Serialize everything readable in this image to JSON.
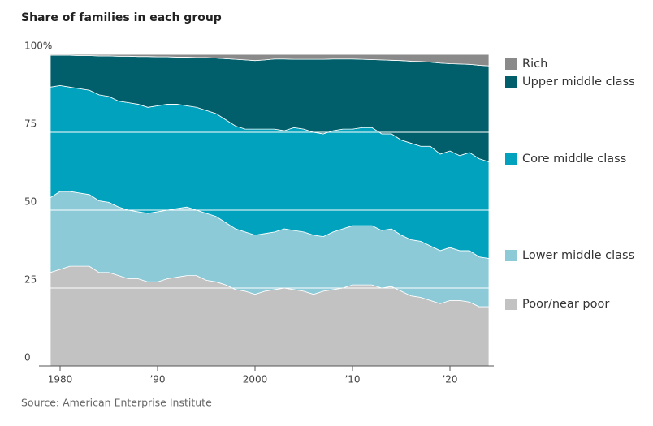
{
  "chart_data": {
    "type": "stacked-area",
    "subtitle": "Share of families in each group",
    "source": "Source: American Enterprise Institute",
    "x": [
      1979,
      1980,
      1981,
      1982,
      1983,
      1984,
      1985,
      1986,
      1987,
      1988,
      1989,
      1990,
      1991,
      1992,
      1993,
      1994,
      1995,
      1996,
      1997,
      1998,
      1999,
      2000,
      2001,
      2002,
      2003,
      2004,
      2005,
      2006,
      2007,
      2008,
      2009,
      2010,
      2011,
      2012,
      2013,
      2014,
      2015,
      2016,
      2017,
      2018,
      2019,
      2020,
      2021,
      2022,
      2023,
      2024
    ],
    "series": [
      {
        "name": "Poor/near poor",
        "color": "#c2c2c2",
        "values": [
          30,
          31,
          32,
          32,
          32,
          30,
          30,
          29,
          28,
          28,
          27,
          27,
          28,
          28.5,
          29,
          29,
          27.5,
          27,
          26,
          24.5,
          24,
          23,
          24,
          24.5,
          25,
          24.5,
          24,
          23,
          24,
          24.5,
          25,
          26,
          26,
          26,
          25,
          25.5,
          24,
          22.5,
          22,
          21,
          20,
          21,
          21,
          20.5,
          19,
          19
        ]
      },
      {
        "name": "Lower middle class",
        "color": "#8ccad8",
        "values": [
          24,
          25,
          24,
          23.5,
          23,
          23,
          22.5,
          22,
          22,
          21.5,
          22,
          22.5,
          22,
          22,
          22,
          21,
          21.5,
          21,
          20,
          19.5,
          19,
          19,
          18.5,
          18.5,
          19,
          19,
          19,
          19,
          17.5,
          18.5,
          19,
          19,
          19,
          19,
          18.5,
          18.5,
          18,
          18,
          18,
          17.5,
          17,
          17,
          16,
          16.5,
          16,
          15.5
        ]
      },
      {
        "name": "Core middle class",
        "color": "#00a2bd",
        "values": [
          35.5,
          34,
          33.5,
          33.5,
          33.5,
          34,
          34,
          34,
          34.5,
          34.5,
          34,
          34,
          34,
          33.5,
          32.5,
          33,
          33,
          33,
          33,
          33,
          33,
          34,
          33.5,
          33,
          31.5,
          33,
          33,
          33,
          33,
          32.5,
          32,
          31,
          31.5,
          31.5,
          31,
          30.5,
          30.5,
          31,
          30.5,
          32,
          31,
          31,
          30.5,
          31.5,
          31.5,
          31
        ]
      },
      {
        "name": "Upper middle class",
        "color": "#005f6a",
        "values": [
          10.2,
          9.7,
          10.2,
          10.6,
          11.1,
          12.5,
          13,
          14.4,
          14.9,
          15.3,
          16.3,
          15.7,
          15.2,
          15.1,
          15.6,
          16,
          17,
          17.8,
          19.6,
          21.4,
          22.2,
          22,
          22.2,
          22.5,
          23,
          21.9,
          22.4,
          23.4,
          23.9,
          23,
          22.5,
          22.5,
          21.9,
          21.8,
          23.7,
          23.6,
          25.5,
          26.3,
          27.2,
          27,
          29.2,
          28,
          29.4,
          28.3,
          30,
          30.8
        ]
      },
      {
        "name": "Rich",
        "color": "#8a8a8a",
        "values": [
          0.3,
          0.3,
          0.3,
          0.4,
          0.4,
          0.5,
          0.5,
          0.6,
          0.6,
          0.7,
          0.7,
          0.8,
          0.8,
          0.9,
          0.9,
          1,
          1,
          1.2,
          1.4,
          1.6,
          1.8,
          2,
          1.8,
          1.5,
          1.5,
          1.6,
          1.6,
          1.6,
          1.6,
          1.5,
          1.5,
          1.5,
          1.6,
          1.7,
          1.8,
          1.9,
          2,
          2.2,
          2.3,
          2.5,
          2.8,
          3,
          3.1,
          3.2,
          3.5,
          3.7
        ]
      }
    ],
    "xlim": [
      1979,
      2024
    ],
    "xticks": [
      {
        "value": 1980,
        "label": "1980"
      },
      {
        "value": 1990,
        "label": "’90"
      },
      2000,
      {
        "value": 2010,
        "label": "’10"
      },
      {
        "value": 2020,
        "label": "’20"
      }
    ],
    "ylim": [
      0,
      100
    ],
    "yticks": [
      0,
      25,
      50,
      75,
      {
        "value": 100,
        "label": "100%"
      }
    ],
    "grid": true
  }
}
